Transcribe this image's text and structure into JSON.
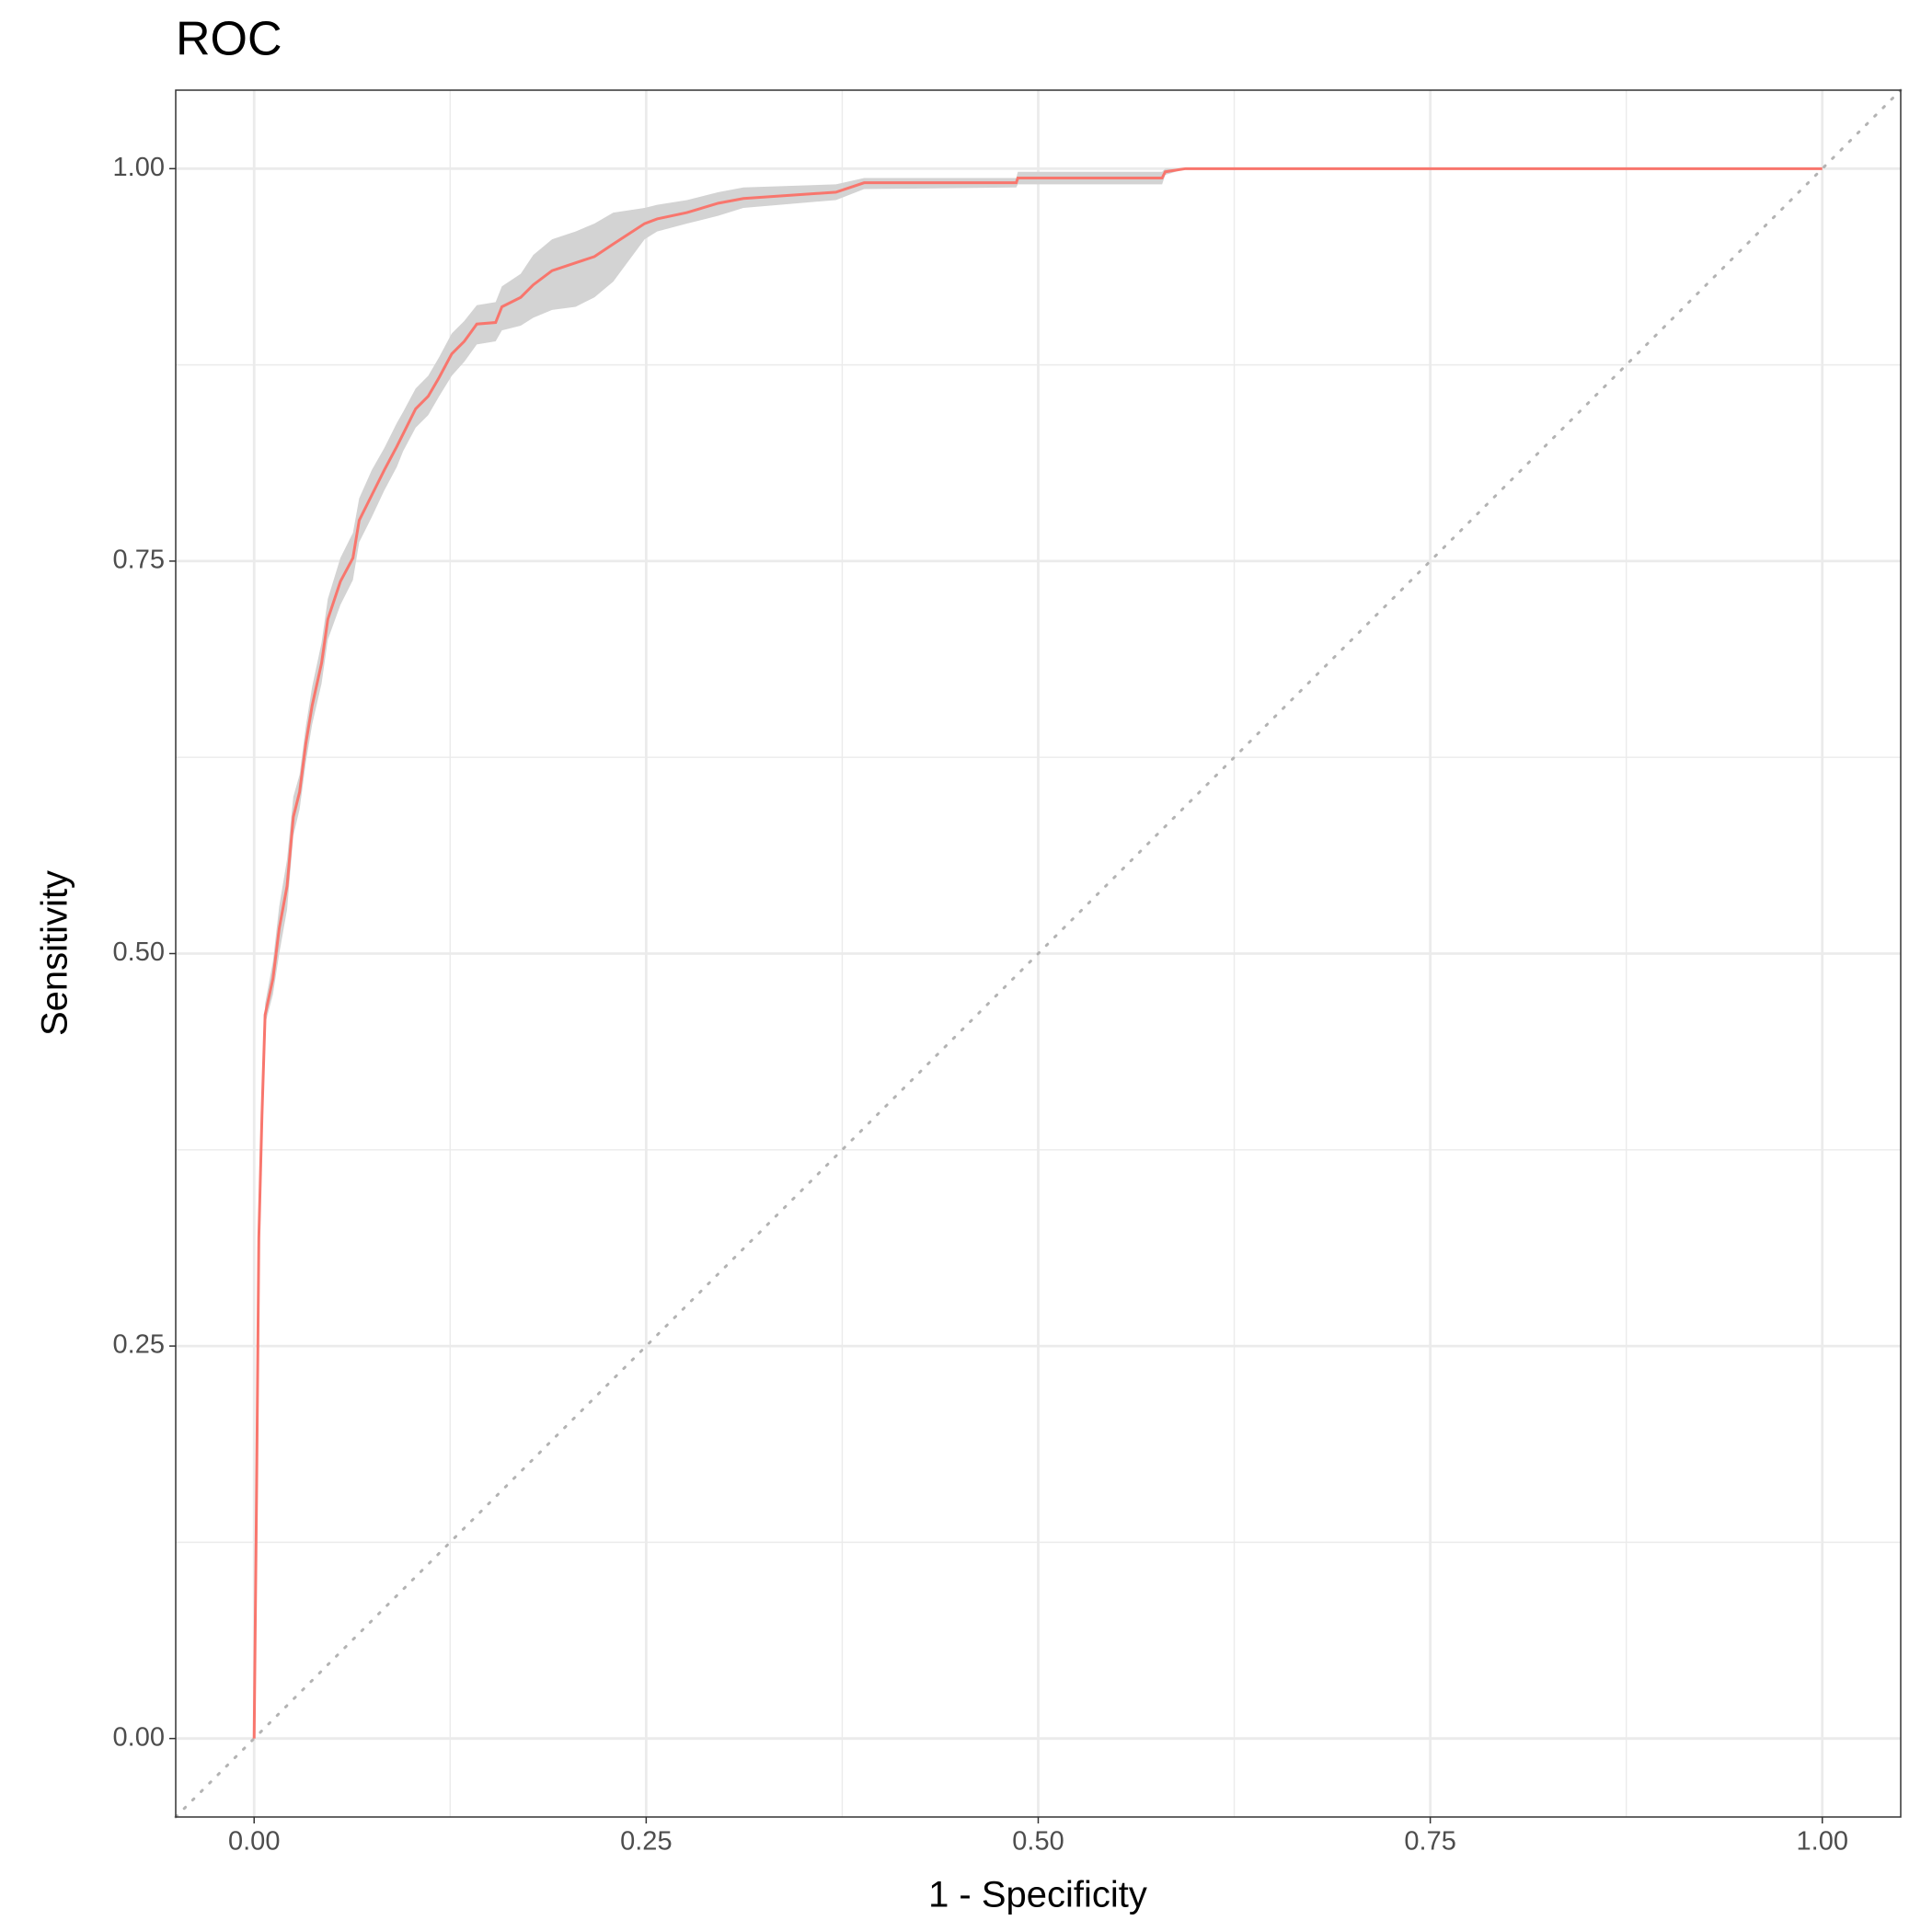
{
  "chart_data": {
    "type": "roc",
    "title": "ROC",
    "x_label": "1 - Specificity",
    "y_label": "Sensitivity",
    "xlim": [
      -0.05,
      1.05
    ],
    "ylim": [
      -0.05,
      1.05
    ],
    "xticks": [
      {
        "value": 0,
        "label": "0.00"
      },
      {
        "value": 0.25,
        "label": "0.25"
      },
      {
        "value": 0.5,
        "label": "0.50"
      },
      {
        "value": 0.75,
        "label": "0.75"
      },
      {
        "value": 1,
        "label": "1.00"
      }
    ],
    "yticks": [
      {
        "value": 0,
        "label": "0.00"
      },
      {
        "value": 0.25,
        "label": "0.25"
      },
      {
        "value": 0.5,
        "label": "0.50"
      },
      {
        "value": 0.75,
        "label": "0.75"
      },
      {
        "value": 1,
        "label": "1.00"
      }
    ],
    "grid": true,
    "minor_grid": true,
    "reference_diagonal": true,
    "x": [
      0,
      0.0016,
      0.003,
      0.005,
      0.007,
      0.012,
      0.016,
      0.021,
      0.025,
      0.029,
      0.033,
      0.037,
      0.043,
      0.047,
      0.055,
      0.063,
      0.067,
      0.075,
      0.083,
      0.091,
      0.095,
      0.103,
      0.111,
      0.118,
      0.126,
      0.134,
      0.142,
      0.154,
      0.158,
      0.17,
      0.178,
      0.19,
      0.205,
      0.217,
      0.229,
      0.249,
      0.257,
      0.276,
      0.296,
      0.312,
      0.371,
      0.389,
      0.486,
      0.487,
      0.579,
      0.581,
      0.594,
      1
    ],
    "series": [
      {
        "name": "Sensitivity",
        "color": "#F8766D",
        "values": [
          0,
          0.161,
          0.319,
          0.397,
          0.461,
          0.484,
          0.516,
          0.543,
          0.587,
          0.603,
          0.634,
          0.658,
          0.685,
          0.713,
          0.737,
          0.752,
          0.776,
          0.792,
          0.808,
          0.823,
          0.831,
          0.847,
          0.855,
          0.867,
          0.882,
          0.89,
          0.901,
          0.902,
          0.912,
          0.918,
          0.926,
          0.935,
          0.94,
          0.944,
          0.952,
          0.965,
          0.968,
          0.972,
          0.978,
          0.981,
          0.985,
          0.991,
          0.991,
          0.994,
          0.994,
          0.998,
          1,
          1
        ]
      }
    ],
    "band": {
      "color": "#d3d3d3",
      "lower": [
        0,
        0.155,
        0.31,
        0.39,
        0.455,
        0.474,
        0.5,
        0.528,
        0.575,
        0.592,
        0.622,
        0.646,
        0.672,
        0.7,
        0.722,
        0.738,
        0.762,
        0.778,
        0.795,
        0.81,
        0.82,
        0.835,
        0.843,
        0.855,
        0.868,
        0.877,
        0.888,
        0.89,
        0.897,
        0.9,
        0.905,
        0.91,
        0.912,
        0.918,
        0.928,
        0.955,
        0.96,
        0.965,
        0.97,
        0.975,
        0.98,
        0.987,
        0.988,
        0.99,
        0.99,
        0.996,
        1,
        1
      ],
      "upper": [
        0,
        0.168,
        0.328,
        0.405,
        0.468,
        0.495,
        0.53,
        0.56,
        0.6,
        0.614,
        0.645,
        0.67,
        0.698,
        0.726,
        0.752,
        0.768,
        0.79,
        0.808,
        0.822,
        0.838,
        0.845,
        0.86,
        0.868,
        0.88,
        0.895,
        0.903,
        0.913,
        0.915,
        0.925,
        0.933,
        0.945,
        0.955,
        0.96,
        0.965,
        0.972,
        0.975,
        0.977,
        0.98,
        0.985,
        0.988,
        0.99,
        0.994,
        0.994,
        0.998,
        0.998,
        1,
        1,
        1
      ]
    }
  }
}
